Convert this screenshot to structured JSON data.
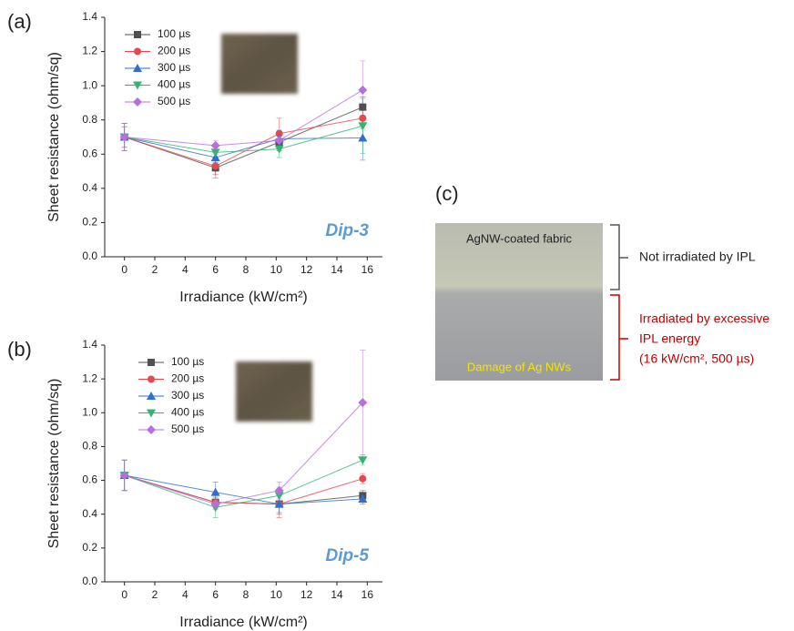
{
  "chart_data": [
    {
      "type": "line",
      "panel_label": "(a)",
      "x_label": "Irradiance (kW/cm²)",
      "y_label": "Sheet resistance (ohm/sq)",
      "annotation": "Dip-3",
      "x": [
        0,
        6,
        10.2,
        15.7
      ],
      "xlim": [
        -1.3,
        17
      ],
      "xticks": [
        0,
        2,
        4,
        6,
        8,
        10,
        12,
        14,
        16
      ],
      "ylim": [
        0,
        1.4
      ],
      "yticks": [
        {
          "value": 0,
          "label": "0.0"
        },
        0.2,
        0.4,
        0.6,
        0.8,
        {
          "value": 1,
          "label": "1.0"
        },
        1.2,
        1.4
      ],
      "legend": "upper left",
      "series": [
        {
          "name": "100 µs",
          "color": "#505050",
          "marker": "square",
          "values": [
            0.7,
            0.52,
            0.67,
            0.875
          ],
          "errors": [
            0.08,
            0.04,
            0.05,
            0.06
          ]
        },
        {
          "name": "200 µs",
          "color": "#e8474c",
          "marker": "circle",
          "values": [
            0.7,
            0.53,
            0.72,
            0.81
          ],
          "errors": [
            0.08,
            0.07,
            0.09,
            0.06
          ]
        },
        {
          "name": "300 µs",
          "color": "#2f6fd1",
          "marker": "triangle-up",
          "values": [
            0.7,
            0.58,
            0.69,
            0.695
          ],
          "errors": [
            0.06,
            0.03,
            0.05,
            0.13
          ]
        },
        {
          "name": "400 µs",
          "color": "#33b56f",
          "marker": "triangle-down",
          "values": [
            0.7,
            0.61,
            0.63,
            0.765
          ],
          "errors": [
            0.06,
            0.03,
            0.05,
            0.16
          ]
        },
        {
          "name": "500 µs",
          "color": "#b76fe0",
          "marker": "diamond",
          "values": [
            0.7,
            0.65,
            0.68,
            0.975
          ],
          "errors": [
            0.08,
            0.03,
            0.05,
            0.17
          ]
        }
      ]
    },
    {
      "type": "line",
      "panel_label": "(b)",
      "x_label": "Irradiance (kW/cm²)",
      "y_label": "Sheet resistance (ohm/sq)",
      "annotation": "Dip-5",
      "x": [
        0,
        6,
        10.2,
        15.7
      ],
      "xlim": [
        -1.3,
        17
      ],
      "xticks": [
        0,
        2,
        4,
        6,
        8,
        10,
        12,
        14,
        16
      ],
      "ylim": [
        0,
        1.4
      ],
      "yticks": [
        {
          "value": 0,
          "label": "0.0"
        },
        0.2,
        0.4,
        0.6,
        0.8,
        {
          "value": 1,
          "label": "1.0"
        },
        1.2,
        1.4
      ],
      "legend": "upper left",
      "series": [
        {
          "name": "100 µs",
          "color": "#505050",
          "marker": "square",
          "values": [
            0.63,
            0.47,
            0.46,
            0.51
          ],
          "errors": [
            0.09,
            0.03,
            0.06,
            0.03
          ]
        },
        {
          "name": "200 µs",
          "color": "#e8474c",
          "marker": "circle",
          "values": [
            0.63,
            0.47,
            0.46,
            0.61
          ],
          "errors": [
            0.09,
            0.04,
            0.08,
            0.03
          ]
        },
        {
          "name": "300 µs",
          "color": "#2f6fd1",
          "marker": "triangle-up",
          "values": [
            0.63,
            0.53,
            0.46,
            0.49
          ],
          "errors": [
            0.09,
            0.06,
            0.05,
            0.03
          ]
        },
        {
          "name": "400 µs",
          "color": "#33b56f",
          "marker": "triangle-down",
          "values": [
            0.63,
            0.44,
            0.51,
            0.72
          ],
          "errors": [
            0.09,
            0.06,
            0.05,
            0.03
          ]
        },
        {
          "name": "500 µs",
          "color": "#b76fe0",
          "marker": "diamond",
          "values": [
            0.63,
            0.46,
            0.54,
            1.06
          ],
          "errors": [
            0.09,
            0.03,
            0.05,
            0.31
          ]
        }
      ]
    }
  ],
  "panel_c": {
    "label": "(c)",
    "photo_top_text": "AgNW-coated fabric",
    "photo_bottom_text": "Damage of Ag NWs",
    "top_note": "Not irradiated by IPL",
    "bottom_note": [
      "Irradiated by excessive",
      "IPL energy",
      "(16 kW/cm², 500 µs)"
    ]
  }
}
